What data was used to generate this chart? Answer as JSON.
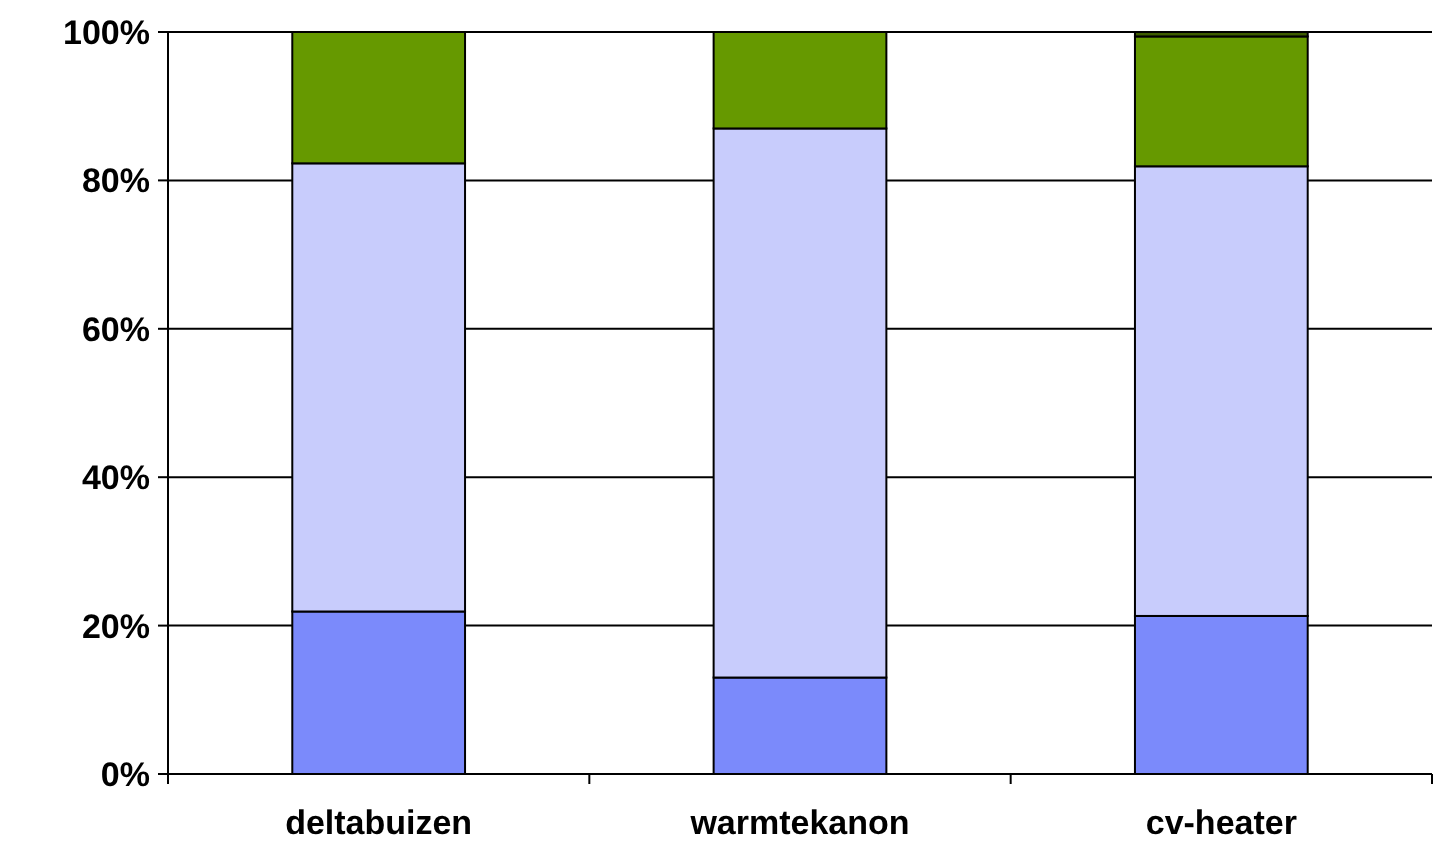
{
  "chart_data": {
    "type": "bar",
    "stacked": true,
    "categories": [
      "deltabuizen",
      "warmtekanon",
      "cv-heater"
    ],
    "series": [
      {
        "color": "#7b8afb",
        "values": [
          21.9,
          13,
          21.3
        ]
      },
      {
        "color": "#c8ccfc",
        "values": [
          60.4,
          74,
          60.6
        ]
      },
      {
        "color": "#669900",
        "values": [
          17.7,
          13,
          17.5
        ]
      },
      {
        "color": "#3d5c00",
        "values": [
          0,
          0,
          0.6
        ]
      }
    ],
    "ylim": [
      0,
      100
    ],
    "yticks": [
      {
        "value": 0,
        "label": "0%"
      },
      {
        "value": 20,
        "label": "20%"
      },
      {
        "value": 40,
        "label": "40%"
      },
      {
        "value": 60,
        "label": "60%"
      },
      {
        "value": 80,
        "label": "80%"
      },
      {
        "value": 100,
        "label": "100%"
      }
    ],
    "grid": "y"
  }
}
